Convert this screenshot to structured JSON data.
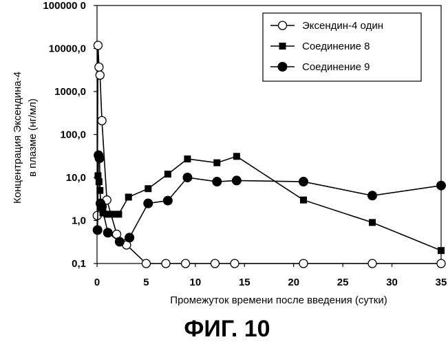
{
  "chart_data": {
    "type": "line",
    "title": "",
    "xlabel": "Промежуток времени после введения (сутки)",
    "ylabel_lines": [
      "Концентрация Эксендина-4",
      "в плазме (нг/мл)"
    ],
    "yscale": "log",
    "ylim": [
      0.1,
      100000
    ],
    "xlim": [
      0,
      35
    ],
    "xticks": [
      0,
      5,
      10,
      15,
      20,
      25,
      30,
      35
    ],
    "yticks": [
      {
        "value": 100000,
        "label": "100000 0"
      },
      {
        "value": 10000,
        "label": "10000,0"
      },
      {
        "value": 1000,
        "label": "1000,0"
      },
      {
        "value": 100,
        "label": "100,0"
      },
      {
        "value": 10,
        "label": "10,0"
      },
      {
        "value": 1,
        "label": "1,0"
      },
      {
        "value": 0.1,
        "label": "0,1"
      }
    ],
    "grid": false,
    "legend_position": "top-right",
    "series": [
      {
        "name": "Эксендин-4 один",
        "marker": "open-circle",
        "x": [
          0.02,
          0.1,
          0.2,
          0.3,
          0.5,
          1.0,
          2.0,
          3.0,
          5.0,
          7.0,
          9.0,
          12.0,
          14.0,
          21.0,
          28.0,
          35.0
        ],
        "y": [
          1.3,
          11800,
          3700,
          2400,
          210,
          3.0,
          0.48,
          0.27,
          0.1,
          0.1,
          0.1,
          0.1,
          0.1,
          0.1,
          0.1,
          0.1
        ]
      },
      {
        "name": "Соединение 8",
        "marker": "filled-square",
        "x": [
          0.1,
          0.2,
          0.3,
          0.4,
          0.6,
          1.0,
          1.5,
          2.2,
          3.2,
          5.2,
          7.2,
          9.2,
          12.2,
          14.2,
          21.0,
          28.0,
          35.0
        ],
        "y": [
          11,
          8,
          5,
          2,
          1.5,
          1.4,
          1.4,
          1.4,
          3.5,
          5.5,
          12,
          27,
          22,
          31,
          3.0,
          0.9,
          0.2
        ]
      },
      {
        "name": "Соединение 9",
        "marker": "filled-circle",
        "x": [
          0.05,
          0.15,
          0.25,
          0.35,
          0.5,
          1.1,
          2.3,
          3.3,
          5.2,
          7.2,
          9.2,
          12.2,
          14.2,
          21.0,
          28.0,
          35.0
        ],
        "y": [
          0.6,
          33,
          28,
          2.5,
          2.1,
          0.52,
          0.32,
          0.4,
          2.5,
          2.9,
          10,
          8,
          8.5,
          8,
          3.8,
          6.5
        ]
      }
    ]
  },
  "caption": "ФИГ. 10"
}
